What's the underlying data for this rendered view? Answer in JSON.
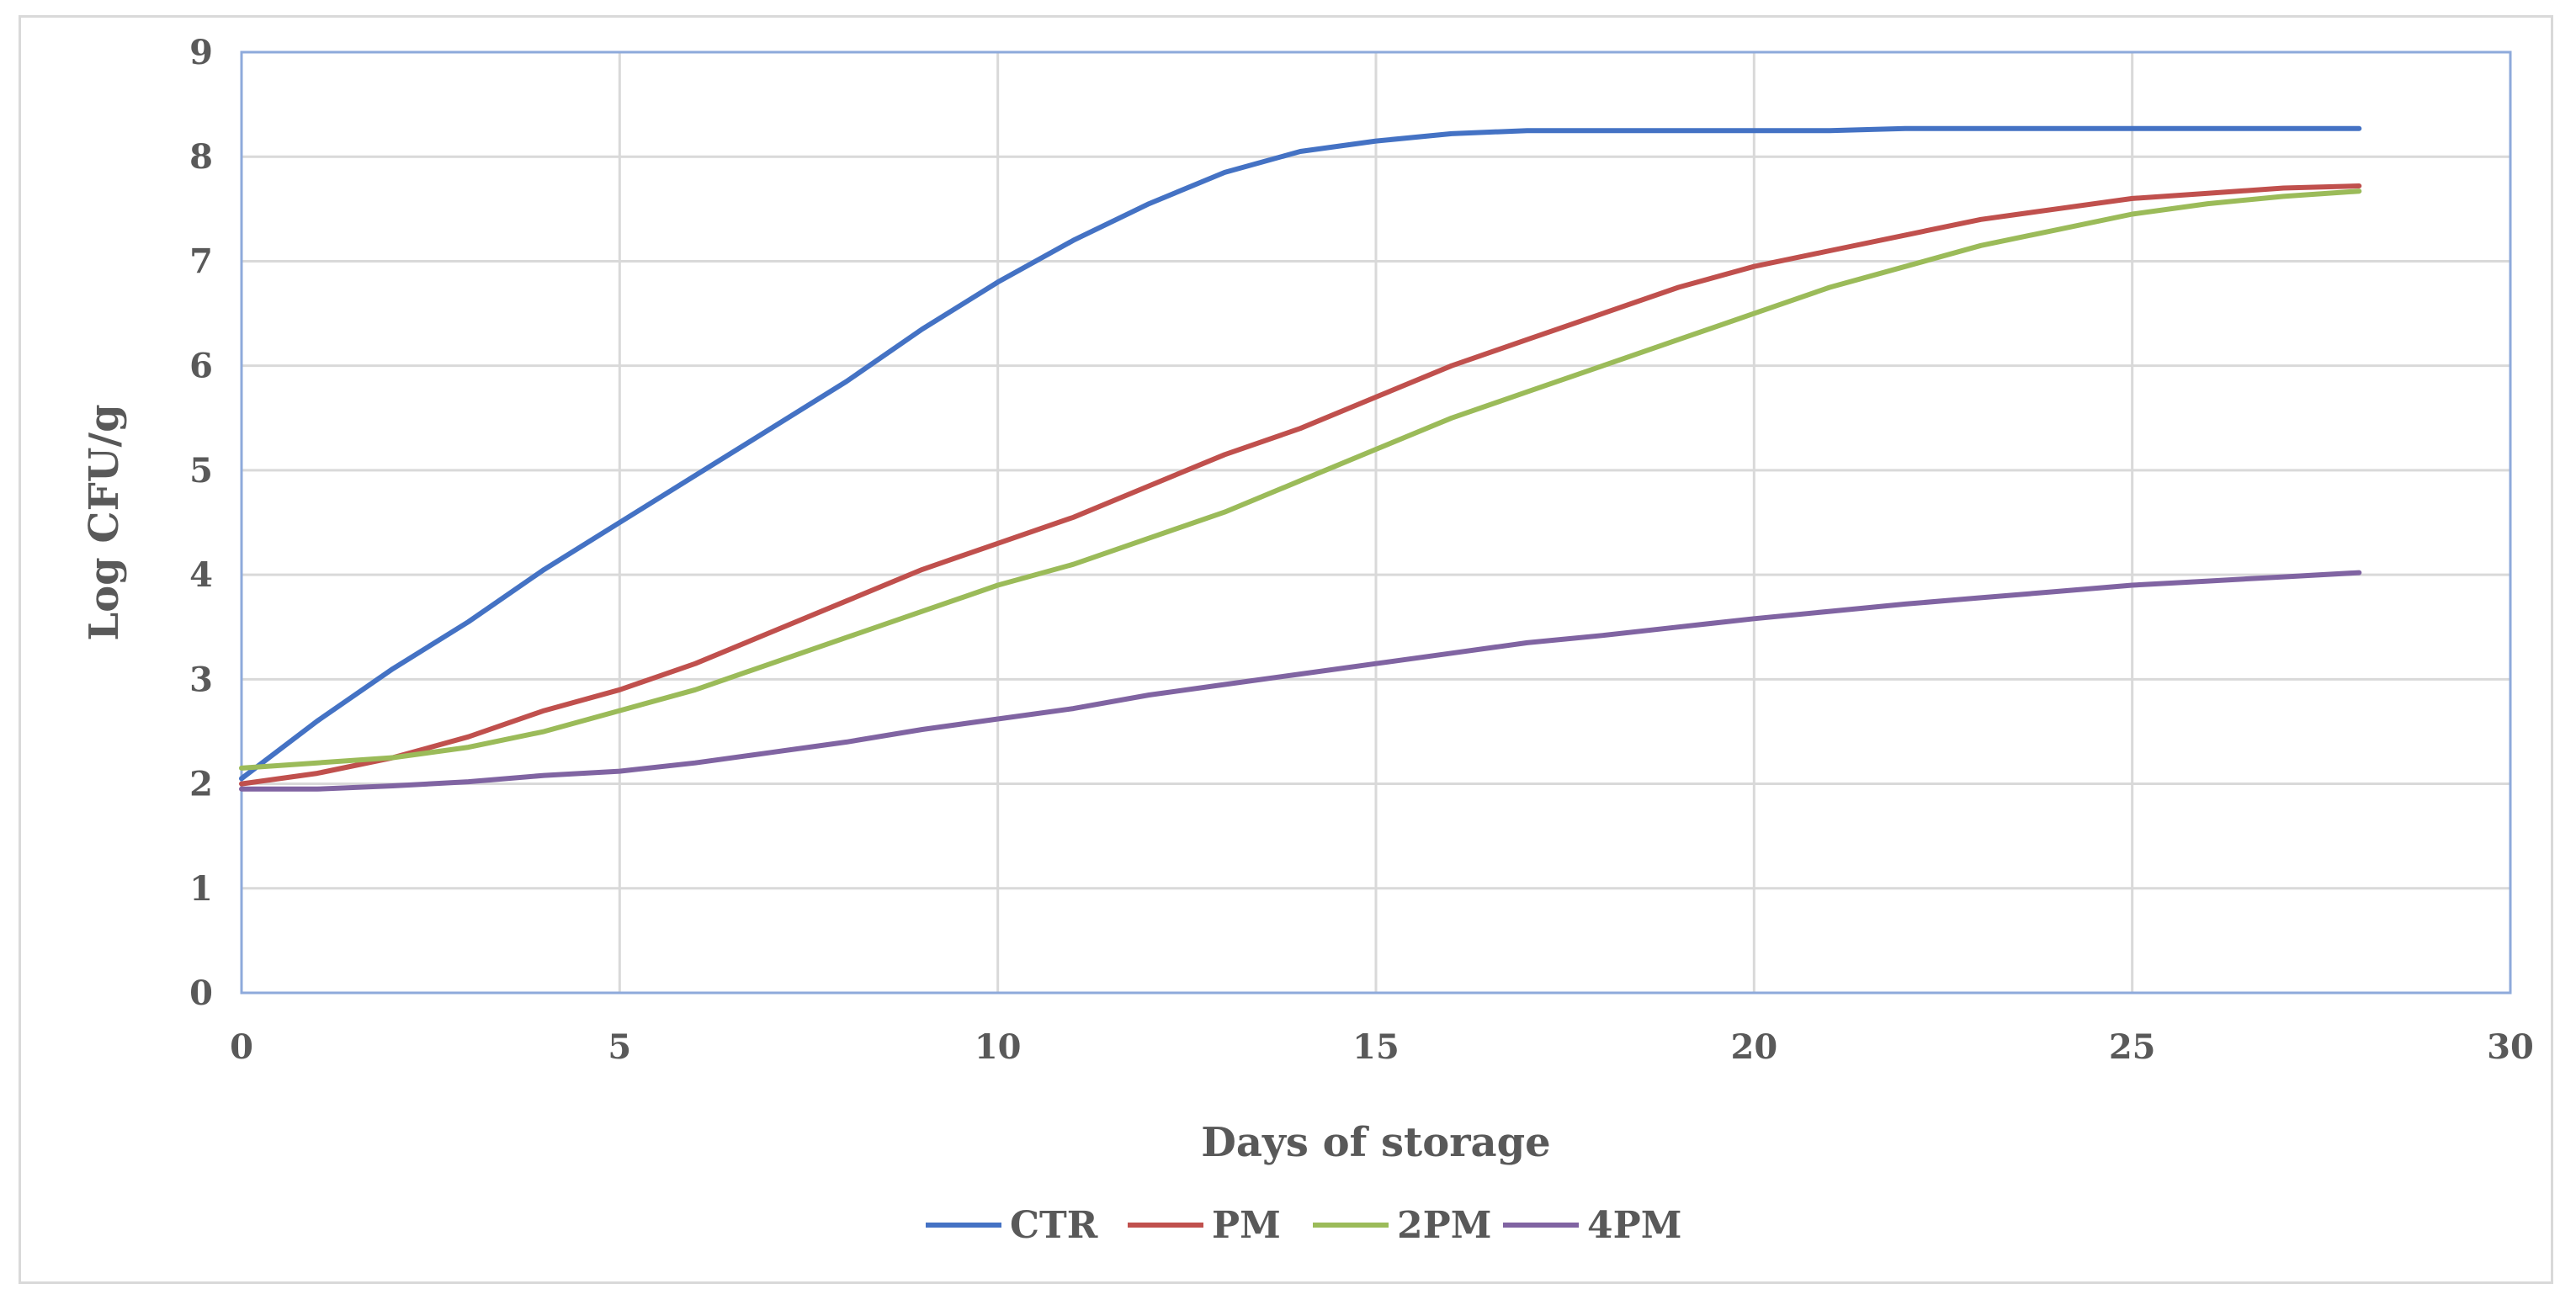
{
  "chart_data": {
    "type": "line",
    "xlabel": "Days of storage",
    "ylabel": "Log CFU/g",
    "xlim": [
      0,
      30
    ],
    "ylim": [
      0,
      9
    ],
    "xticks": [
      "0",
      "5",
      "10",
      "15",
      "20",
      "25",
      "30"
    ],
    "yticks": [
      "0",
      "1",
      "2",
      "3",
      "4",
      "5",
      "6",
      "7",
      "8",
      "9"
    ],
    "grid": true,
    "legend_position": "bottom",
    "series": [
      {
        "name": "CTR",
        "color": "#4472c4",
        "x": [
          0,
          1,
          2,
          3,
          4,
          5,
          6,
          7,
          8,
          9,
          10,
          11,
          12,
          13,
          14,
          15,
          16,
          17,
          18,
          19,
          20,
          21,
          22,
          23,
          24,
          25,
          26,
          27,
          28
        ],
        "y": [
          2.05,
          2.6,
          3.1,
          3.55,
          4.05,
          4.5,
          4.95,
          5.4,
          5.85,
          6.35,
          6.8,
          7.2,
          7.55,
          7.85,
          8.05,
          8.15,
          8.22,
          8.25,
          8.25,
          8.25,
          8.25,
          8.25,
          8.27,
          8.27,
          8.27,
          8.27,
          8.27,
          8.27,
          8.27
        ]
      },
      {
        "name": "PM",
        "color": "#c0504d",
        "x": [
          0,
          1,
          2,
          3,
          4,
          5,
          6,
          7,
          8,
          9,
          10,
          11,
          12,
          13,
          14,
          15,
          16,
          17,
          18,
          19,
          20,
          21,
          22,
          23,
          24,
          25,
          26,
          27,
          28
        ],
        "y": [
          2.0,
          2.1,
          2.25,
          2.45,
          2.7,
          2.9,
          3.15,
          3.45,
          3.75,
          4.05,
          4.3,
          4.55,
          4.85,
          5.15,
          5.4,
          5.7,
          6.0,
          6.25,
          6.5,
          6.75,
          6.95,
          7.1,
          7.25,
          7.4,
          7.5,
          7.6,
          7.65,
          7.7,
          7.72
        ]
      },
      {
        "name": "2PM",
        "color": "#9bbb59",
        "x": [
          0,
          1,
          2,
          3,
          4,
          5,
          6,
          7,
          8,
          9,
          10,
          11,
          12,
          13,
          14,
          15,
          16,
          17,
          18,
          19,
          20,
          21,
          22,
          23,
          24,
          25,
          26,
          27,
          28
        ],
        "y": [
          2.15,
          2.2,
          2.25,
          2.35,
          2.5,
          2.7,
          2.9,
          3.15,
          3.4,
          3.65,
          3.9,
          4.1,
          4.35,
          4.6,
          4.9,
          5.2,
          5.5,
          5.75,
          6.0,
          6.25,
          6.5,
          6.75,
          6.95,
          7.15,
          7.3,
          7.45,
          7.55,
          7.62,
          7.67
        ]
      },
      {
        "name": "4PM",
        "color": "#8064a2",
        "x": [
          0,
          1,
          2,
          3,
          4,
          5,
          6,
          7,
          8,
          9,
          10,
          11,
          12,
          13,
          14,
          15,
          16,
          17,
          18,
          19,
          20,
          21,
          22,
          23,
          24,
          25,
          26,
          27,
          28
        ],
        "y": [
          1.95,
          1.95,
          1.98,
          2.02,
          2.08,
          2.12,
          2.2,
          2.3,
          2.4,
          2.52,
          2.62,
          2.72,
          2.85,
          2.95,
          3.05,
          3.15,
          3.25,
          3.35,
          3.42,
          3.5,
          3.58,
          3.65,
          3.72,
          3.78,
          3.84,
          3.9,
          3.94,
          3.98,
          4.02
        ]
      }
    ]
  }
}
